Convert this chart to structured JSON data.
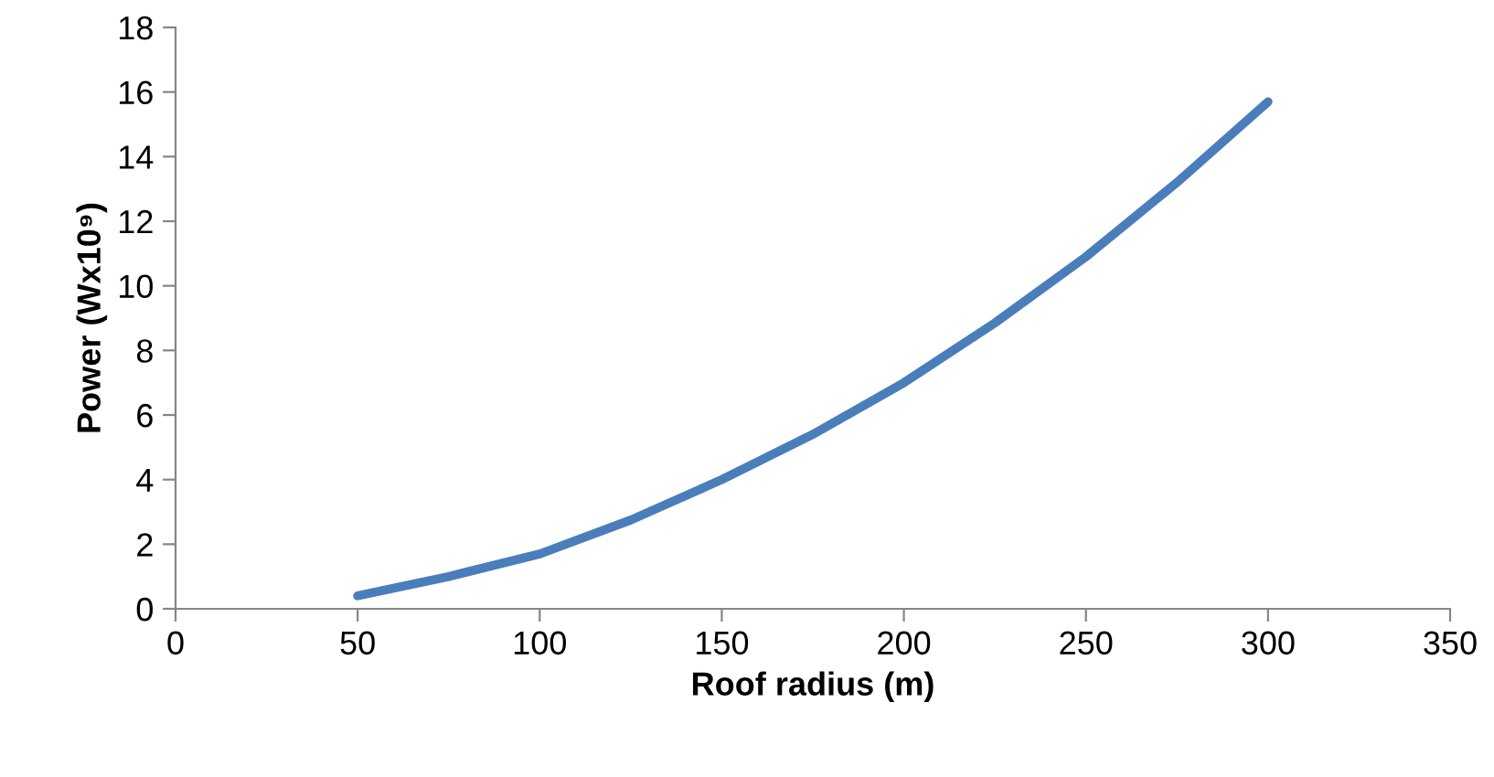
{
  "chart_data": {
    "type": "line",
    "xlabel": "Roof radius (m)",
    "ylabel": "Power (Wx10⁹)",
    "series": [
      {
        "color": "#4a7ebb",
        "x": [
          50,
          75,
          100,
          125,
          150,
          175,
          200,
          225,
          250,
          275,
          300
        ],
        "values": [
          0.4,
          1.0,
          1.7,
          2.75,
          4.0,
          5.4,
          7.0,
          8.85,
          10.9,
          13.2,
          15.7
        ]
      }
    ],
    "xlim": [
      0,
      350
    ],
    "xticks": [
      0,
      50,
      100,
      150,
      200,
      250,
      300,
      350
    ],
    "ylim": [
      0,
      18
    ],
    "yticks": [
      0,
      2,
      4,
      6,
      8,
      10,
      12,
      14,
      16,
      18
    ],
    "grid": false,
    "legend": false,
    "marker": "none",
    "line_style": "solid"
  }
}
